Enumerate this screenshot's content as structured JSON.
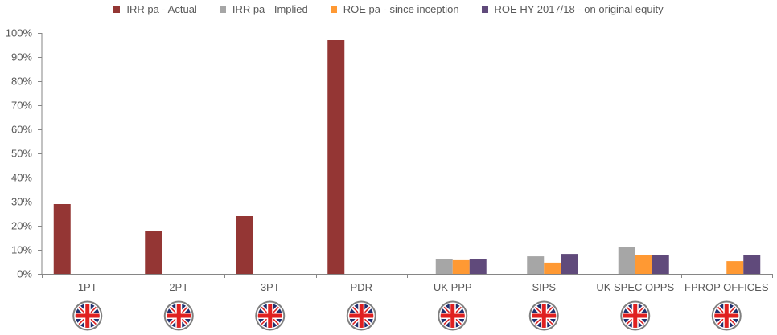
{
  "chart_data": {
    "type": "bar",
    "title": "",
    "xlabel": "",
    "ylabel": "",
    "ylim": [
      0,
      100
    ],
    "yticks": [
      "0%",
      "10%",
      "20%",
      "30%",
      "40%",
      "50%",
      "60%",
      "70%",
      "80%",
      "90%",
      "100%"
    ],
    "categories": [
      "1PT",
      "2PT",
      "3PT",
      "PDR",
      "UK PPP",
      "SIPS",
      "UK SPEC OPPS",
      "FPROP OFFICES"
    ],
    "category_icons": [
      "uk-flag-icon",
      "uk-flag-icon",
      "uk-flag-icon",
      "uk-flag-icon",
      "uk-flag-icon",
      "uk-flag-icon",
      "uk-flag-icon",
      "uk-flag-icon"
    ],
    "legend_position": "top",
    "grid": false,
    "series": [
      {
        "name": "IRR pa - Actual",
        "color": "#943634",
        "values": [
          29,
          18,
          24,
          97,
          null,
          null,
          null,
          null
        ]
      },
      {
        "name": "IRR pa - Implied",
        "color": "#A6A6A6",
        "values": [
          null,
          null,
          null,
          null,
          6,
          7.3,
          11.3,
          null
        ]
      },
      {
        "name": "ROE pa - since inception",
        "color": "#FF9933",
        "values": [
          null,
          null,
          null,
          null,
          5.7,
          4.7,
          7.7,
          5.3
        ]
      },
      {
        "name": "ROE HY 2017/18 - on original equity",
        "color": "#604A7B",
        "values": [
          null,
          null,
          null,
          null,
          6.3,
          8.3,
          7.7,
          7.7
        ]
      }
    ]
  }
}
